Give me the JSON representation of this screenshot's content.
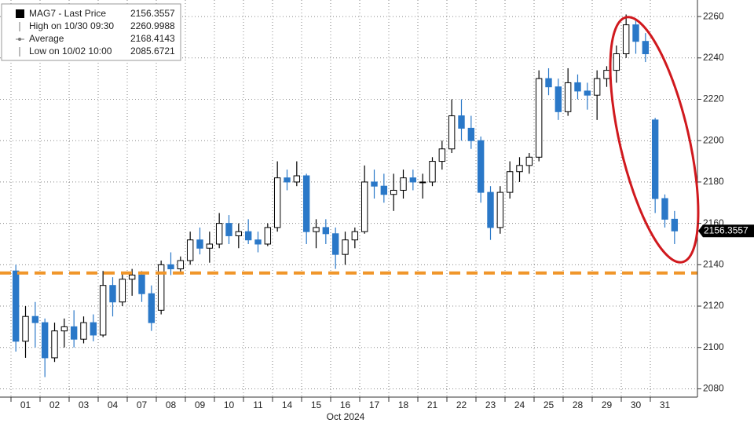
{
  "chart_data": {
    "type": "candlestick",
    "legend": [
      {
        "label": "MAG7 - Last Price",
        "value": 2156.3557
      },
      {
        "label": "High on 10/30 09:30",
        "value": 2260.9988
      },
      {
        "label": "Average",
        "value": 2168.4143
      },
      {
        "label": "Low on 10/02 10:00",
        "value": 2085.6721
      }
    ],
    "x_title": "Oct 2024",
    "ylim": [
      2076,
      2268
    ],
    "yticks": [
      2080,
      2100,
      2120,
      2140,
      2160,
      2180,
      2200,
      2220,
      2240,
      2260
    ],
    "grid": true,
    "up_color": "#000000",
    "down_color": "#2a78c8",
    "reference_line": {
      "value": 2136,
      "color": "#f0962a"
    },
    "days": [
      {
        "label": "01",
        "open": [
          2137,
          2103,
          2115
        ],
        "high": [
          2140,
          2120,
          2122
        ],
        "low": [
          2098,
          2095,
          2100
        ],
        "close": [
          2103,
          2115,
          2112
        ]
      },
      {
        "label": "02",
        "open": [
          2112,
          2095,
          2108
        ],
        "high": [
          2114,
          2112,
          2114
        ],
        "low": [
          2085.6721,
          2093,
          2100
        ],
        "close": [
          2095,
          2108,
          2110
        ]
      },
      {
        "label": "03",
        "open": [
          2110,
          2104,
          2112
        ],
        "high": [
          2118,
          2115,
          2116
        ],
        "low": [
          2100,
          2102,
          2103
        ],
        "close": [
          2104,
          2112,
          2106
        ]
      },
      {
        "label": "04",
        "open": [
          2106,
          2130,
          2122
        ],
        "high": [
          2137,
          2134,
          2136
        ],
        "low": [
          2105,
          2115,
          2120
        ],
        "close": [
          2130,
          2122,
          2133
        ]
      },
      {
        "label": "07",
        "open": [
          2133,
          2135,
          2126
        ],
        "high": [
          2138,
          2137,
          2130
        ],
        "low": [
          2125,
          2122,
          2108
        ],
        "close": [
          2135,
          2126,
          2112
        ]
      },
      {
        "label": "08",
        "open": [
          2118,
          2140,
          2138
        ],
        "high": [
          2142,
          2146,
          2144
        ],
        "low": [
          2116,
          2135,
          2136
        ],
        "close": [
          2140,
          2138,
          2142
        ]
      },
      {
        "label": "09",
        "open": [
          2142,
          2152,
          2148
        ],
        "high": [
          2156,
          2158,
          2156
        ],
        "low": [
          2140,
          2145,
          2141
        ],
        "close": [
          2152,
          2148,
          2150
        ]
      },
      {
        "label": "10",
        "open": [
          2150,
          2160,
          2154
        ],
        "high": [
          2165,
          2164,
          2160
        ],
        "low": [
          2148,
          2150,
          2148
        ],
        "close": [
          2160,
          2154,
          2156
        ]
      },
      {
        "label": "11",
        "open": [
          2156,
          2152,
          2150
        ],
        "high": [
          2162,
          2156,
          2160
        ],
        "low": [
          2150,
          2146,
          2149
        ],
        "close": [
          2152,
          2150,
          2158
        ]
      },
      {
        "label": "14",
        "open": [
          2158,
          2182,
          2180
        ],
        "high": [
          2190,
          2186,
          2190
        ],
        "low": [
          2156,
          2176,
          2178
        ],
        "close": [
          2182,
          2180,
          2183
        ]
      },
      {
        "label": "15",
        "open": [
          2183,
          2156,
          2158
        ],
        "high": [
          2184,
          2162,
          2162
        ],
        "low": [
          2150,
          2148,
          2150
        ],
        "close": [
          2156,
          2158,
          2155
        ]
      },
      {
        "label": "16",
        "open": [
          2155,
          2145,
          2152
        ],
        "high": [
          2158,
          2156,
          2158
        ],
        "low": [
          2138,
          2140,
          2148
        ],
        "close": [
          2145,
          2152,
          2156
        ]
      },
      {
        "label": "17",
        "open": [
          2156,
          2180,
          2178
        ],
        "high": [
          2188,
          2186,
          2184
        ],
        "low": [
          2155,
          2172,
          2170
        ],
        "close": [
          2180,
          2178,
          2174
        ]
      },
      {
        "label": "18",
        "open": [
          2174,
          2176,
          2182
        ],
        "high": [
          2184,
          2186,
          2186
        ],
        "low": [
          2166,
          2172,
          2176
        ],
        "close": [
          2176,
          2182,
          2180
        ]
      },
      {
        "label": "21",
        "open": [
          2180,
          2180,
          2190
        ],
        "high": [
          2184,
          2192,
          2200
        ],
        "low": [
          2172,
          2178,
          2186
        ],
        "close": [
          2180,
          2190,
          2196
        ]
      },
      {
        "label": "22",
        "open": [
          2196,
          2212,
          2206
        ],
        "high": [
          2220,
          2220,
          2212
        ],
        "low": [
          2194,
          2200,
          2196
        ],
        "close": [
          2212,
          2206,
          2200
        ]
      },
      {
        "label": "23",
        "open": [
          2200,
          2175,
          2158
        ],
        "high": [
          2202,
          2178,
          2178
        ],
        "low": [
          2170,
          2152,
          2155
        ],
        "close": [
          2175,
          2158,
          2175
        ]
      },
      {
        "label": "24",
        "open": [
          2175,
          2185,
          2188
        ],
        "high": [
          2190,
          2192,
          2194
        ],
        "low": [
          2172,
          2180,
          2184
        ],
        "close": [
          2185,
          2188,
          2192
        ]
      },
      {
        "label": "25",
        "open": [
          2192,
          2230,
          2226
        ],
        "high": [
          2234,
          2235,
          2230
        ],
        "low": [
          2190,
          2222,
          2210
        ],
        "close": [
          2230,
          2226,
          2214
        ]
      },
      {
        "label": "28",
        "open": [
          2214,
          2228,
          2224
        ],
        "high": [
          2235,
          2232,
          2228
        ],
        "low": [
          2212,
          2220,
          2215
        ],
        "close": [
          2228,
          2224,
          2222
        ]
      },
      {
        "label": "29",
        "open": [
          2222,
          2230,
          2234
        ],
        "high": [
          2234,
          2236,
          2246
        ],
        "low": [
          2210,
          2226,
          2228
        ],
        "close": [
          2230,
          2234,
          2242
        ]
      },
      {
        "label": "30",
        "open": [
          2242,
          2256,
          2248
        ],
        "high": [
          2260.9988,
          2259,
          2252
        ],
        "low": [
          2240,
          2242,
          2238
        ],
        "close": [
          2256,
          2248,
          2242
        ]
      },
      {
        "label": "31",
        "open": [
          2210,
          2172,
          2162
        ],
        "high": [
          2211,
          2174,
          2166
        ],
        "low": [
          2165,
          2158,
          2150
        ],
        "close": [
          2172,
          2162,
          2156.3557
        ]
      }
    ]
  }
}
